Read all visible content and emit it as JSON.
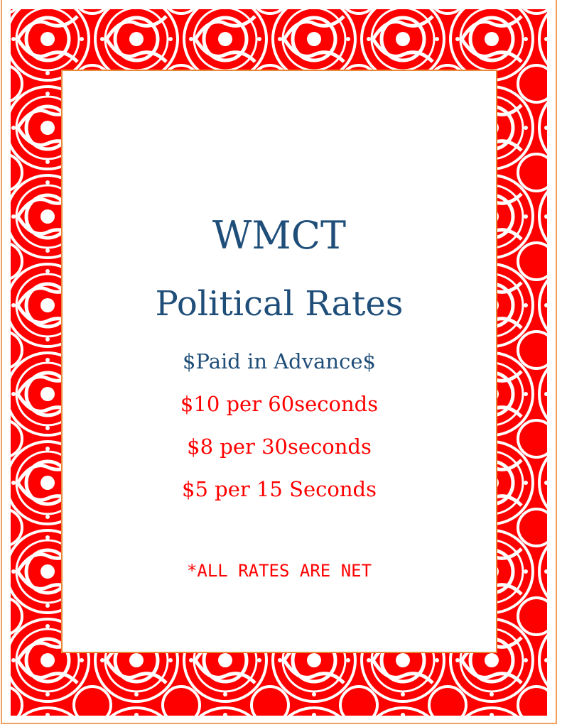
{
  "colors": {
    "border_red": "#ff0000",
    "title_blue": "#1f4e79",
    "rate_red": "#ff0000",
    "inner_border": "#e8893a"
  },
  "document": {
    "title": "WMCT",
    "subtitle": "Political Rates",
    "payment_note": "$Paid in Advance$",
    "rates": [
      "$10 per 60seconds",
      "$8 per 30seconds",
      "$5 per 15 Seconds"
    ],
    "footnote": "*ALL RATES ARE NET"
  }
}
